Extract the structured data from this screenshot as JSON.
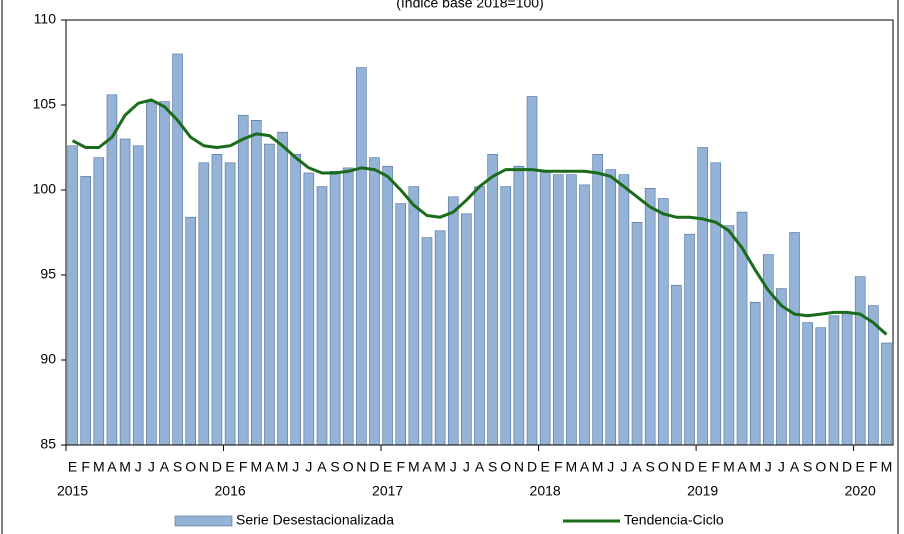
{
  "chart_data": {
    "type": "bar",
    "subtitle": "(índice base 2018=100)",
    "categories": [
      "E",
      "F",
      "M",
      "A",
      "M",
      "J",
      "J",
      "A",
      "S",
      "O",
      "N",
      "D",
      "E",
      "F",
      "M",
      "A",
      "M",
      "J",
      "J",
      "A",
      "S",
      "O",
      "N",
      "D",
      "E",
      "F",
      "M",
      "A",
      "M",
      "J",
      "J",
      "A",
      "S",
      "O",
      "N",
      "D",
      "E",
      "F",
      "M",
      "A",
      "M",
      "J",
      "J",
      "A",
      "S",
      "O",
      "N",
      "D",
      "E",
      "F",
      "M",
      "A",
      "M",
      "J",
      "J",
      "A",
      "S",
      "O",
      "N",
      "D",
      "E",
      "F",
      "M"
    ],
    "year_labels": [
      "2015",
      "2016",
      "2017",
      "2018",
      "2019",
      "2020"
    ],
    "series": [
      {
        "name": "Serie Desestacionalizada",
        "type": "bar",
        "color": "#95b3d7",
        "values": [
          102.6,
          100.8,
          101.9,
          105.6,
          103.0,
          102.6,
          105.2,
          105.2,
          108.0,
          98.4,
          101.6,
          102.1,
          101.6,
          104.4,
          104.1,
          102.7,
          103.4,
          102.1,
          101.0,
          100.2,
          101.1,
          101.3,
          107.2,
          101.9,
          101.4,
          99.2,
          100.2,
          97.2,
          97.6,
          99.6,
          98.6,
          100.2,
          102.1,
          100.2,
          101.4,
          105.5,
          101.1,
          100.9,
          100.9,
          100.3,
          102.1,
          101.2,
          100.9,
          98.1,
          100.1,
          99.5,
          94.4,
          97.4,
          102.5,
          101.6,
          97.9,
          98.7,
          93.4,
          96.2,
          94.2,
          97.5,
          92.2,
          91.9,
          92.6,
          92.8,
          94.9,
          93.2,
          91.0
        ]
      },
      {
        "name": "Tendencia-Ciclo",
        "type": "line",
        "color": "#1a6b1a",
        "values": [
          102.9,
          102.5,
          102.5,
          103.1,
          104.4,
          105.1,
          105.3,
          104.9,
          104.1,
          103.1,
          102.6,
          102.5,
          102.6,
          103.0,
          103.3,
          103.2,
          102.6,
          101.9,
          101.3,
          101.0,
          101.0,
          101.1,
          101.3,
          101.2,
          100.8,
          100.0,
          99.1,
          98.5,
          98.4,
          98.7,
          99.4,
          100.2,
          100.8,
          101.2,
          101.2,
          101.2,
          101.1,
          101.1,
          101.1,
          101.1,
          101.0,
          100.8,
          100.2,
          99.6,
          99.0,
          98.6,
          98.4,
          98.4,
          98.3,
          98.1,
          97.6,
          96.6,
          95.3,
          94.1,
          93.2,
          92.7,
          92.6,
          92.7,
          92.8,
          92.8,
          92.7,
          92.2,
          91.5
        ]
      }
    ],
    "ylim": [
      85,
      110
    ],
    "yticks": [
      85,
      90,
      95,
      100,
      105,
      110
    ]
  }
}
